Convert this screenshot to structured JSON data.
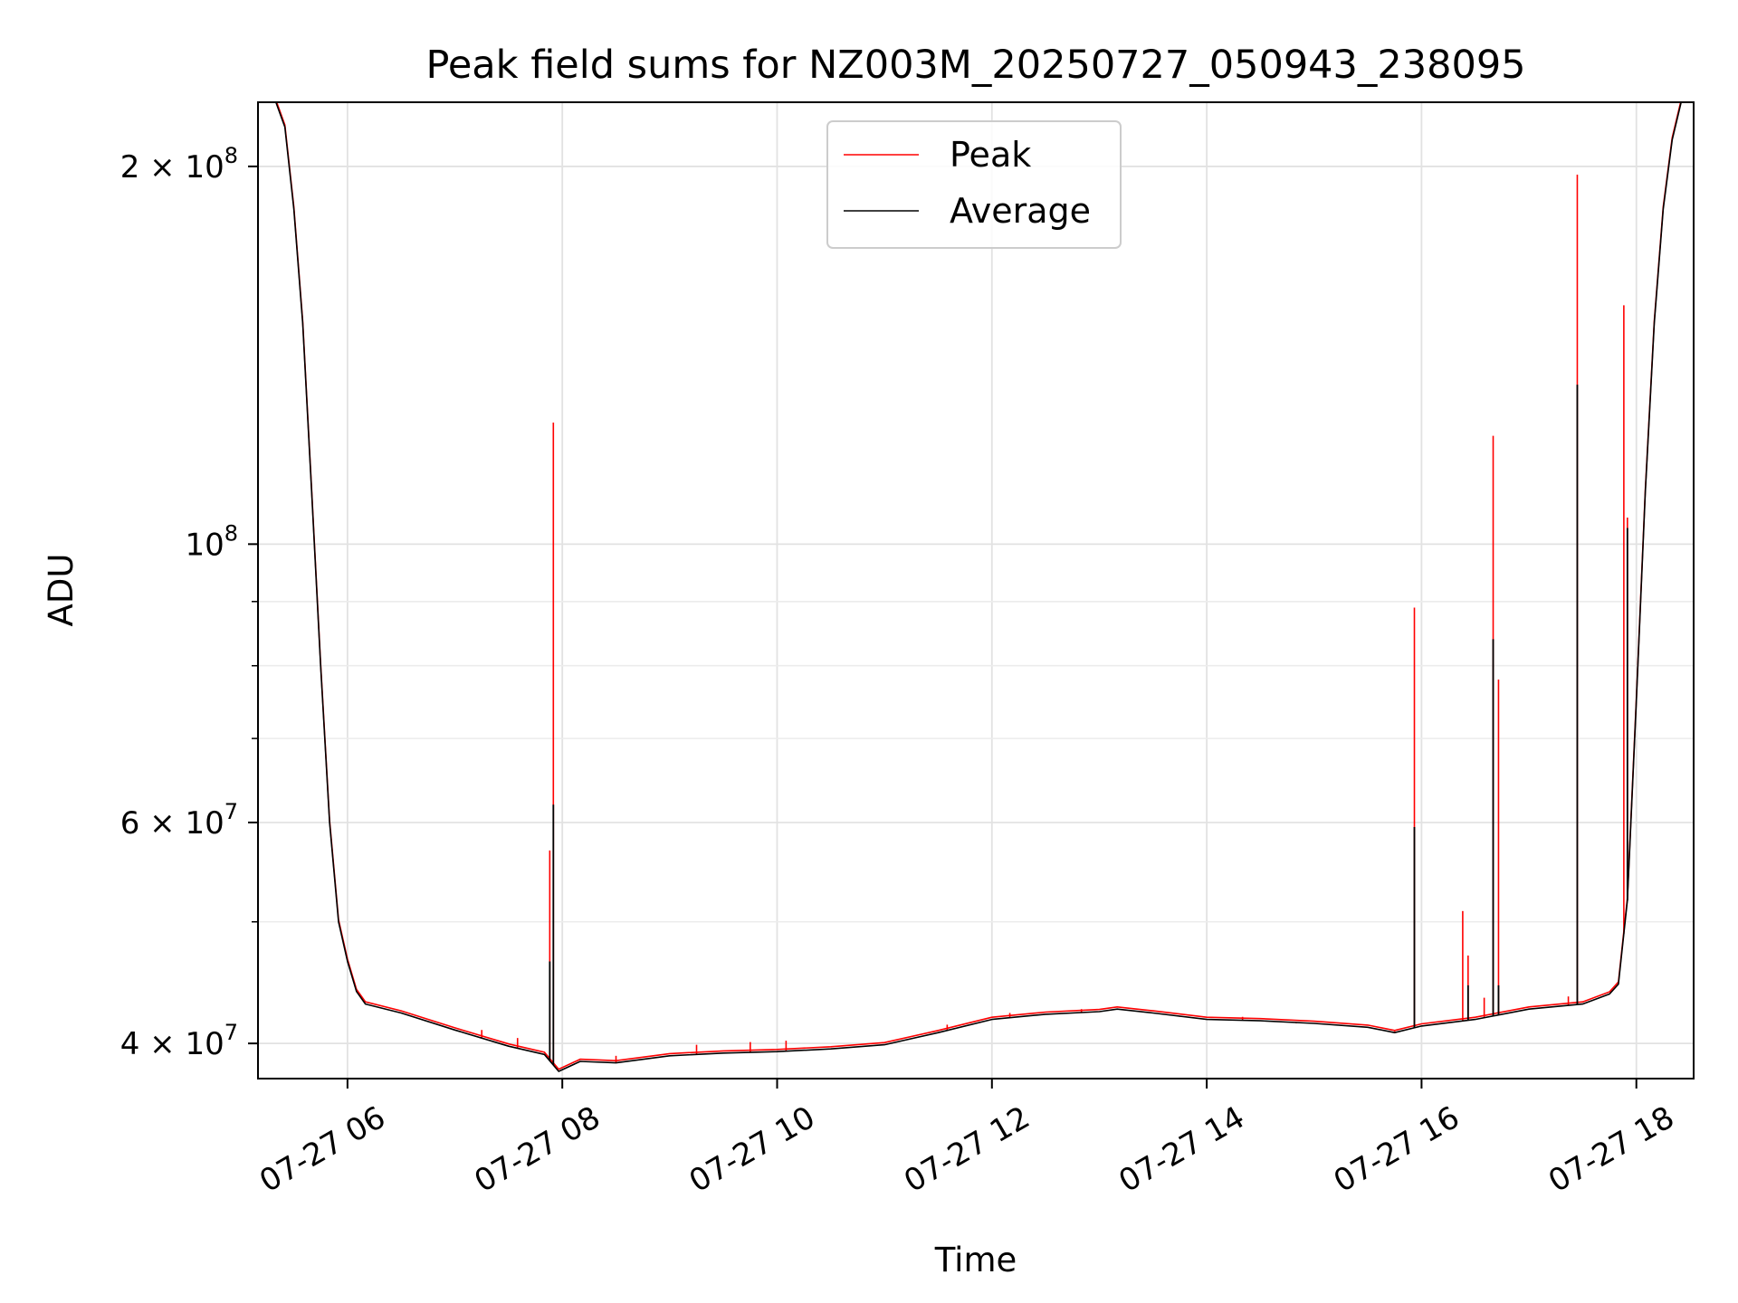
{
  "chart_data": {
    "type": "line",
    "title": "Peak field sums for NZ003M_20250727_050943_238095",
    "xlabel": "Time",
    "ylabel": "ADU",
    "yscale": "log",
    "ylim": [
      37500000,
      225000000
    ],
    "xlim": [
      "2025-07-27T05:10",
      "2025-07-27T18:32"
    ],
    "grid": true,
    "legend_position": "upper-center",
    "x_ticks": [
      {
        "t": "2025-07-27T06:00",
        "label": "07-27 06"
      },
      {
        "t": "2025-07-27T08:00",
        "label": "07-27 08"
      },
      {
        "t": "2025-07-27T10:00",
        "label": "07-27 10"
      },
      {
        "t": "2025-07-27T12:00",
        "label": "07-27 12"
      },
      {
        "t": "2025-07-27T14:00",
        "label": "07-27 14"
      },
      {
        "t": "2025-07-27T16:00",
        "label": "07-27 16"
      },
      {
        "t": "2025-07-27T18:00",
        "label": "07-27 18"
      }
    ],
    "y_ticks_major": [
      {
        "v": 40000000,
        "base": "4 × 10",
        "exp": "7"
      },
      {
        "v": 60000000,
        "base": "6 × 10",
        "exp": "7"
      },
      {
        "v": 100000000,
        "base": "10",
        "exp": "8"
      },
      {
        "v": 200000000,
        "base": "2 × 10",
        "exp": "8"
      }
    ],
    "y_grid_minor": [
      50000000,
      70000000,
      80000000,
      90000000
    ],
    "series": [
      {
        "name": "Peak",
        "color": "#ff0000",
        "spikes": [
          {
            "t": "2025-07-27T07:53",
            "v": 57000000
          },
          {
            "t": "2025-07-27T07:55",
            "v": 125000000
          },
          {
            "t": "2025-07-27T15:56",
            "v": 89000000
          },
          {
            "t": "2025-07-27T16:23",
            "v": 51000000
          },
          {
            "t": "2025-07-27T16:26",
            "v": 47000000
          },
          {
            "t": "2025-07-27T16:40",
            "v": 122000000
          },
          {
            "t": "2025-07-27T16:43",
            "v": 78000000
          },
          {
            "t": "2025-07-27T17:27",
            "v": 197000000
          },
          {
            "t": "2025-07-27T17:53",
            "v": 155000000
          },
          {
            "t": "2025-07-27T17:55",
            "v": 105000000
          },
          {
            "t": "2025-07-27T06:45",
            "v": 41600000
          },
          {
            "t": "2025-07-27T07:15",
            "v": 41000000
          },
          {
            "t": "2025-07-27T07:35",
            "v": 40400000
          },
          {
            "t": "2025-07-27T08:30",
            "v": 39100000
          },
          {
            "t": "2025-07-27T09:15",
            "v": 39900000
          },
          {
            "t": "2025-07-27T09:45",
            "v": 40100000
          },
          {
            "t": "2025-07-27T10:05",
            "v": 40200000
          },
          {
            "t": "2025-07-27T11:35",
            "v": 41400000
          },
          {
            "t": "2025-07-27T12:10",
            "v": 42300000
          },
          {
            "t": "2025-07-27T12:50",
            "v": 42600000
          },
          {
            "t": "2025-07-27T13:15",
            "v": 42500000
          },
          {
            "t": "2025-07-27T13:45",
            "v": 42000000
          },
          {
            "t": "2025-07-27T14:20",
            "v": 42000000
          },
          {
            "t": "2025-07-27T14:50",
            "v": 41500000
          },
          {
            "t": "2025-07-27T15:15",
            "v": 41300000
          },
          {
            "t": "2025-07-27T15:45",
            "v": 40900000
          },
          {
            "t": "2025-07-27T16:35",
            "v": 43500000
          },
          {
            "t": "2025-07-27T17:22",
            "v": 43600000
          }
        ]
      },
      {
        "name": "Average",
        "color": "#000000",
        "x": [
          "2025-07-27T05:10",
          "2025-07-27T05:20",
          "2025-07-27T05:25",
          "2025-07-27T05:30",
          "2025-07-27T05:35",
          "2025-07-27T05:40",
          "2025-07-27T05:45",
          "2025-07-27T05:50",
          "2025-07-27T05:55",
          "2025-07-27T06:00",
          "2025-07-27T06:05",
          "2025-07-27T06:10",
          "2025-07-27T06:30",
          "2025-07-27T07:00",
          "2025-07-27T07:30",
          "2025-07-27T07:50",
          "2025-07-27T07:58",
          "2025-07-27T08:10",
          "2025-07-27T08:30",
          "2025-07-27T09:00",
          "2025-07-27T09:30",
          "2025-07-27T10:00",
          "2025-07-27T10:30",
          "2025-07-27T11:00",
          "2025-07-27T11:30",
          "2025-07-27T12:00",
          "2025-07-27T12:30",
          "2025-07-27T13:00",
          "2025-07-27T13:10",
          "2025-07-27T13:30",
          "2025-07-27T14:00",
          "2025-07-27T14:30",
          "2025-07-27T15:00",
          "2025-07-27T15:30",
          "2025-07-27T15:45",
          "2025-07-27T16:00",
          "2025-07-27T16:30",
          "2025-07-27T17:00",
          "2025-07-27T17:30",
          "2025-07-27T17:45",
          "2025-07-27T17:50",
          "2025-07-27T17:55",
          "2025-07-27T18:00",
          "2025-07-27T18:05",
          "2025-07-27T18:10",
          "2025-07-27T18:15",
          "2025-07-27T18:20",
          "2025-07-27T18:25",
          "2025-07-27T18:32"
        ],
        "values": [
          225000000,
          225000000,
          215000000,
          185000000,
          150000000,
          110000000,
          80000000,
          60000000,
          50000000,
          46500000,
          44000000,
          43000000,
          42300000,
          41000000,
          39800000,
          39200000,
          38000000,
          38700000,
          38600000,
          39100000,
          39300000,
          39400000,
          39600000,
          39900000,
          40800000,
          41800000,
          42200000,
          42400000,
          42600000,
          42300000,
          41800000,
          41700000,
          41500000,
          41200000,
          40800000,
          41300000,
          41800000,
          42600000,
          43000000,
          43800000,
          44600000,
          52000000,
          75000000,
          110000000,
          150000000,
          185000000,
          210000000,
          225000000,
          225000000
        ],
        "spikes": [
          {
            "t": "2025-07-27T07:53",
            "v": 46500000
          },
          {
            "t": "2025-07-27T07:55",
            "v": 62000000
          },
          {
            "t": "2025-07-27T15:56",
            "v": 59500000
          },
          {
            "t": "2025-07-27T16:26",
            "v": 44500000
          },
          {
            "t": "2025-07-27T16:40",
            "v": 84000000
          },
          {
            "t": "2025-07-27T16:43",
            "v": 44500000
          },
          {
            "t": "2025-07-27T17:27",
            "v": 134000000
          },
          {
            "t": "2025-07-27T17:55",
            "v": 103000000
          }
        ]
      }
    ]
  }
}
